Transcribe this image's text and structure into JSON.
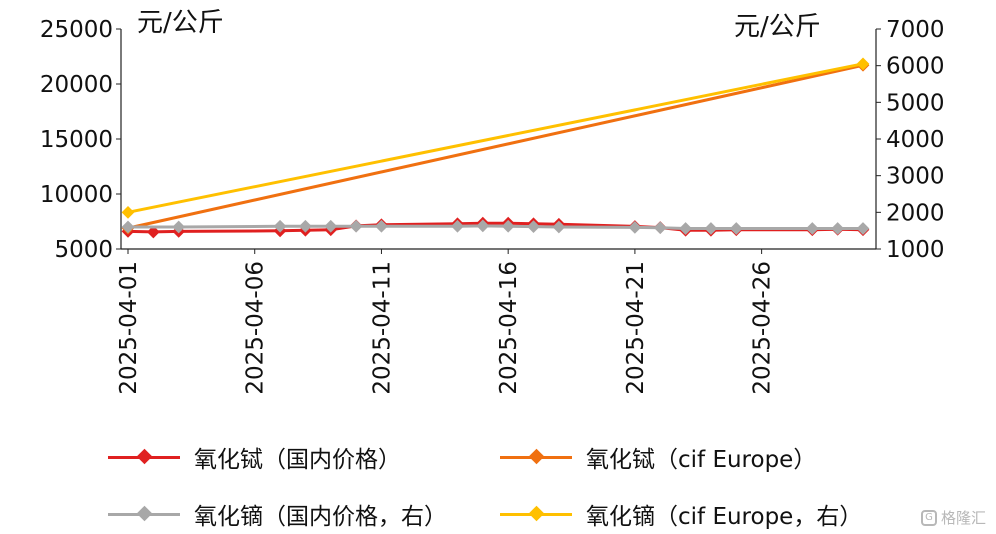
{
  "chart_data": {
    "type": "line",
    "units": {
      "left": "元/公斤",
      "right": "元/公斤"
    },
    "left_axis": {
      "min": 5000,
      "max": 25000,
      "ticks": [
        "5000",
        "10000",
        "15000",
        "20000",
        "25000"
      ]
    },
    "right_axis": {
      "min": 1000,
      "max": 7000,
      "ticks": [
        "1000",
        "2000",
        "3000",
        "4000",
        "5000",
        "6000",
        "7000"
      ]
    },
    "x_tick_labels": [
      "2025-04-01",
      "2025-04-06",
      "2025-04-11",
      "2025-04-16",
      "2025-04-21",
      "2025-04-26"
    ],
    "x_range": [
      "2025-04-01",
      "2025-04-30"
    ],
    "grid": false,
    "legend_position": "bottom",
    "series": [
      {
        "name": "氧化铽（国内价格）",
        "axis": "left",
        "color": "#e02020",
        "points": [
          [
            "2025-04-01",
            6600
          ],
          [
            "2025-04-02",
            6550
          ],
          [
            "2025-04-03",
            6600
          ],
          [
            "2025-04-07",
            6650
          ],
          [
            "2025-04-08",
            6700
          ],
          [
            "2025-04-09",
            6750
          ],
          [
            "2025-04-10",
            7100
          ],
          [
            "2025-04-11",
            7200
          ],
          [
            "2025-04-14",
            7300
          ],
          [
            "2025-04-15",
            7350
          ],
          [
            "2025-04-16",
            7350
          ],
          [
            "2025-04-17",
            7300
          ],
          [
            "2025-04-18",
            7250
          ],
          [
            "2025-04-21",
            7050
          ],
          [
            "2025-04-22",
            6950
          ],
          [
            "2025-04-23",
            6700
          ],
          [
            "2025-04-24",
            6700
          ],
          [
            "2025-04-25",
            6750
          ],
          [
            "2025-04-28",
            6750
          ],
          [
            "2025-04-29",
            6800
          ],
          [
            "2025-04-30",
            6750
          ]
        ]
      },
      {
        "name": "氧化铽（cif Europe）",
        "axis": "left",
        "color": "#f07010",
        "points": [
          [
            "2025-04-01",
            6900
          ],
          [
            "2025-04-30",
            21700
          ]
        ]
      },
      {
        "name": "氧化镝（国内价格，右）",
        "axis": "right",
        "color": "#a8a8a8",
        "points": [
          [
            "2025-04-01",
            1600
          ],
          [
            "2025-04-03",
            1600
          ],
          [
            "2025-04-07",
            1620
          ],
          [
            "2025-04-08",
            1620
          ],
          [
            "2025-04-09",
            1620
          ],
          [
            "2025-04-10",
            1620
          ],
          [
            "2025-04-11",
            1620
          ],
          [
            "2025-04-14",
            1620
          ],
          [
            "2025-04-15",
            1630
          ],
          [
            "2025-04-16",
            1620
          ],
          [
            "2025-04-17",
            1610
          ],
          [
            "2025-04-18",
            1600
          ],
          [
            "2025-04-21",
            1590
          ],
          [
            "2025-04-22",
            1580
          ],
          [
            "2025-04-23",
            1560
          ],
          [
            "2025-04-24",
            1560
          ],
          [
            "2025-04-25",
            1560
          ],
          [
            "2025-04-28",
            1560
          ],
          [
            "2025-04-29",
            1560
          ],
          [
            "2025-04-30",
            1560
          ]
        ]
      },
      {
        "name": "氧化镝（cif Europe，右）",
        "axis": "right",
        "color": "#ffc000",
        "points": [
          [
            "2025-04-01",
            2000
          ],
          [
            "2025-04-30",
            6050
          ]
        ]
      }
    ]
  },
  "legend": [
    {
      "label": "氧化铽（国内价格）",
      "color": "#e02020"
    },
    {
      "label": "氧化铽（cif Europe）",
      "color": "#f07010"
    },
    {
      "label": "氧化镝（国内价格，右）",
      "color": "#a8a8a8"
    },
    {
      "label": "氧化镝（cif Europe，右）",
      "color": "#ffc000"
    }
  ],
  "watermark": {
    "icon": "g-logo-icon",
    "text": "格隆汇"
  }
}
